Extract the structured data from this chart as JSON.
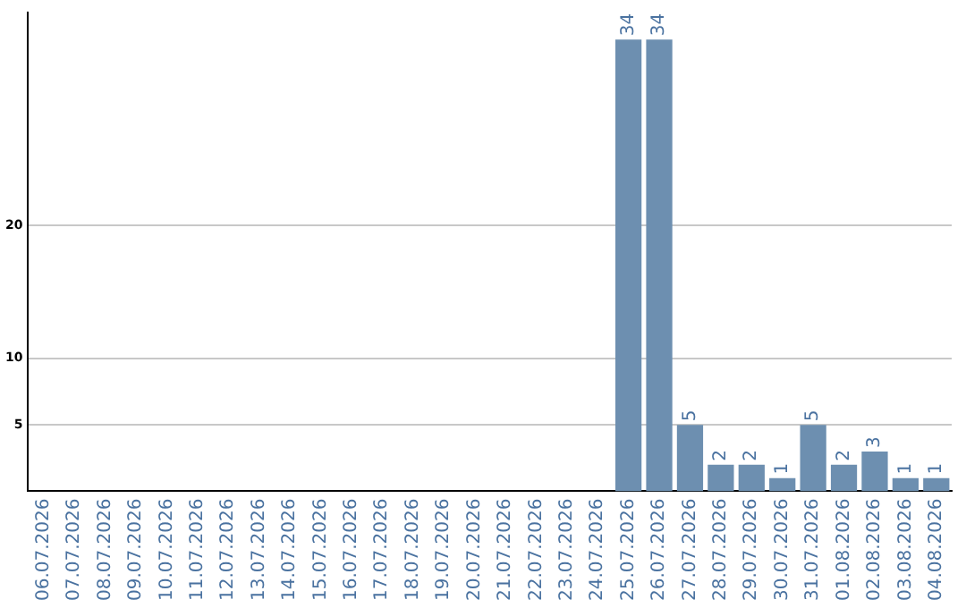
{
  "chart_data": {
    "type": "bar",
    "categories": [
      "06.07.2026",
      "07.07.2026",
      "08.07.2026",
      "09.07.2026",
      "10.07.2026",
      "11.07.2026",
      "12.07.2026",
      "13.07.2026",
      "14.07.2026",
      "15.07.2026",
      "16.07.2026",
      "17.07.2026",
      "18.07.2026",
      "19.07.2026",
      "20.07.2026",
      "21.07.2026",
      "22.07.2026",
      "23.07.2026",
      "24.07.2026",
      "25.07.2026",
      "26.07.2026",
      "27.07.2026",
      "28.07.2026",
      "29.07.2026",
      "30.07.2026",
      "31.07.2026",
      "01.08.2026",
      "02.08.2026",
      "03.08.2026",
      "04.08.2026"
    ],
    "values": [
      0,
      0,
      0,
      0,
      0,
      0,
      0,
      0,
      0,
      0,
      0,
      0,
      0,
      0,
      0,
      0,
      0,
      0,
      0,
      34,
      34,
      5,
      2,
      2,
      1,
      5,
      2,
      3,
      1,
      1
    ],
    "value_labels": [
      null,
      null,
      null,
      null,
      null,
      null,
      null,
      null,
      null,
      null,
      null,
      null,
      null,
      null,
      null,
      null,
      null,
      null,
      null,
      "34",
      "34",
      "5",
      "2",
      "2",
      "1",
      "5",
      "2",
      "3",
      "1",
      "1"
    ],
    "color": "#6d8fb0",
    "ylim": [
      0,
      36
    ],
    "yticks": [
      5,
      10,
      20
    ],
    "grid": "y",
    "legend": false
  }
}
